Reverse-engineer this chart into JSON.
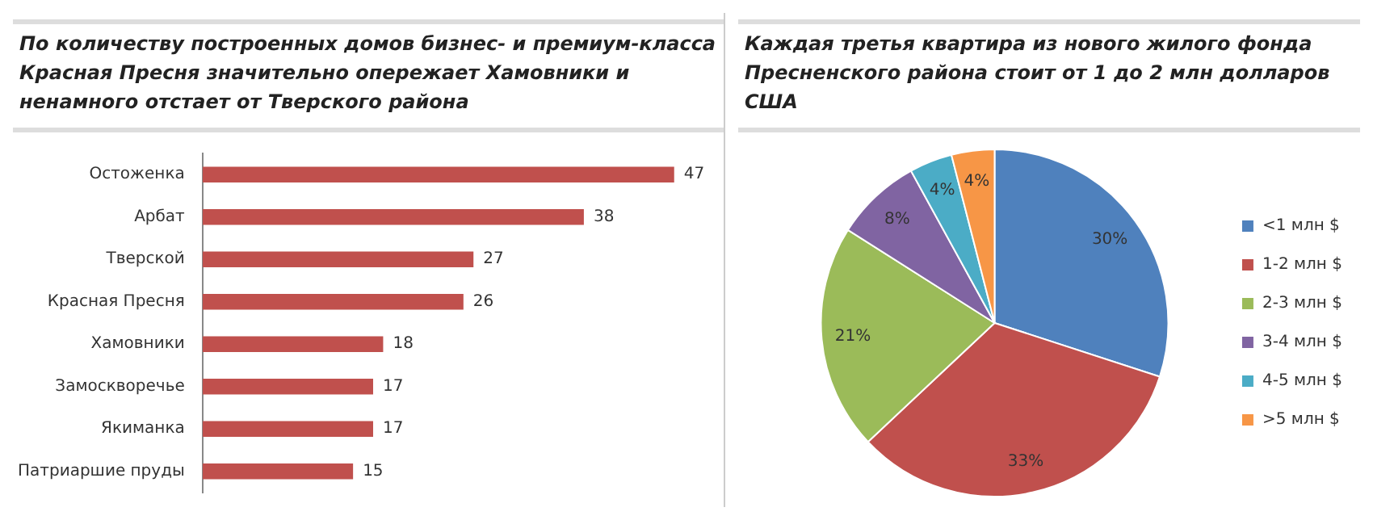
{
  "chart_data": [
    {
      "type": "bar",
      "orientation": "horizontal",
      "title": "По количеству построенных домов бизнес- и премиум-класса Красная Пресня значительно опережает Хамовники и ненамного отстает от Тверского района",
      "categories": [
        "Остоженка",
        "Арбат",
        "Тверской",
        "Красная Пресня",
        "Хамовники",
        "Замоскворечье",
        "Якиманка",
        "Патриаршие пруды"
      ],
      "values": [
        47,
        38,
        27,
        26,
        18,
        17,
        17,
        15
      ],
      "color": "#c0504d",
      "data_labels": true,
      "tick_labels": "y"
    },
    {
      "type": "pie",
      "title": "Каждая третья квартира из нового жилого фонда Пресненского района стоит от 1 до 2 млн долларов США",
      "categories": [
        "<1 млн $",
        "1-2 млн $",
        "2-3 млн $",
        "3-4 млн $",
        "4-5 млн $",
        ">5 млн $"
      ],
      "values": [
        30,
        33,
        21,
        8,
        4,
        4
      ],
      "colors": [
        "#4f81bd",
        "#c0504d",
        "#9bbb59",
        "#8064a2",
        "#4bacc6",
        "#f79646"
      ],
      "value_labels": [
        "30%",
        "33%",
        "21%",
        "8%",
        "4%",
        "4%"
      ],
      "legend": "right"
    }
  ]
}
